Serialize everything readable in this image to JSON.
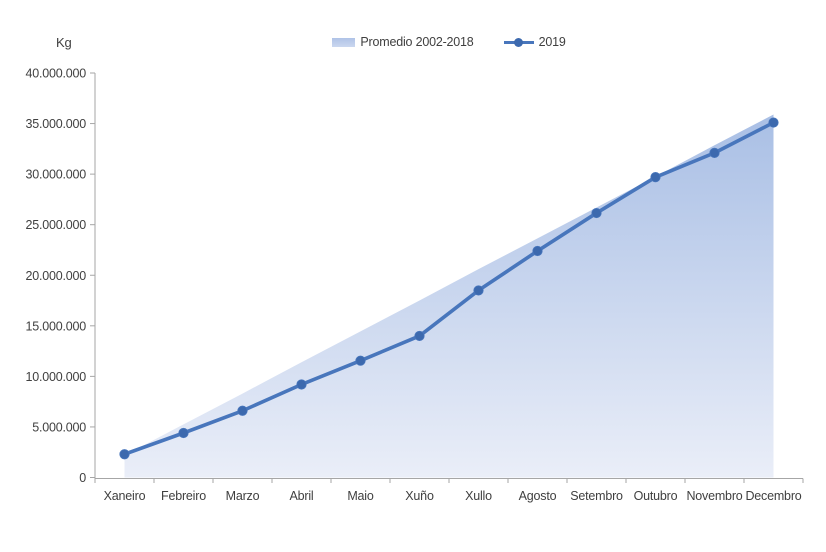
{
  "chart_data": {
    "type": "area",
    "subtype": "combo-area-line",
    "title": "",
    "y_axis_title": "Kg",
    "xlabel": "",
    "ylabel": "Kg",
    "categories": [
      "Xaneiro",
      "Febreiro",
      "Marzo",
      "Abril",
      "Maio",
      "Xuño",
      "Xullo",
      "Agosto",
      "Setembro",
      "Outubro",
      "Novembro",
      "Decembro"
    ],
    "series": [
      {
        "name": "Promedio 2002-2018",
        "type": "area",
        "values": [
          2200000,
          5250000,
          8300000,
          11400000,
          14450000,
          17500000,
          20600000,
          23650000,
          26700000,
          29750000,
          32850000,
          35900000
        ]
      },
      {
        "name": "2019",
        "type": "line",
        "marker": "circle",
        "values": [
          2300000,
          4400000,
          6600000,
          9200000,
          11550000,
          14000000,
          18500000,
          22400000,
          26150000,
          29700000,
          32100000,
          35100000
        ]
      }
    ],
    "ylim": [
      0,
      40000000
    ],
    "y_tick_step": 5000000,
    "y_tick_labels": [
      "0",
      "5.000.000",
      "10.000.000",
      "15.000.000",
      "20.000.000",
      "25.000.000",
      "30.000.000",
      "35.000.000",
      "40.000.000"
    ],
    "legend_position": "top-center",
    "gridlines": false,
    "colors": {
      "line_2019": "#4876BC",
      "marker_2019": "#3C69AE",
      "area_top": "#A9BFE5",
      "area_bottom": "#EAEEF8",
      "legend_area_top": "#AFC3E7",
      "legend_area_bottom": "#CBD7EF",
      "axis": "#A6A6A6",
      "text": "#404040",
      "background": "#FFFFFF"
    }
  }
}
